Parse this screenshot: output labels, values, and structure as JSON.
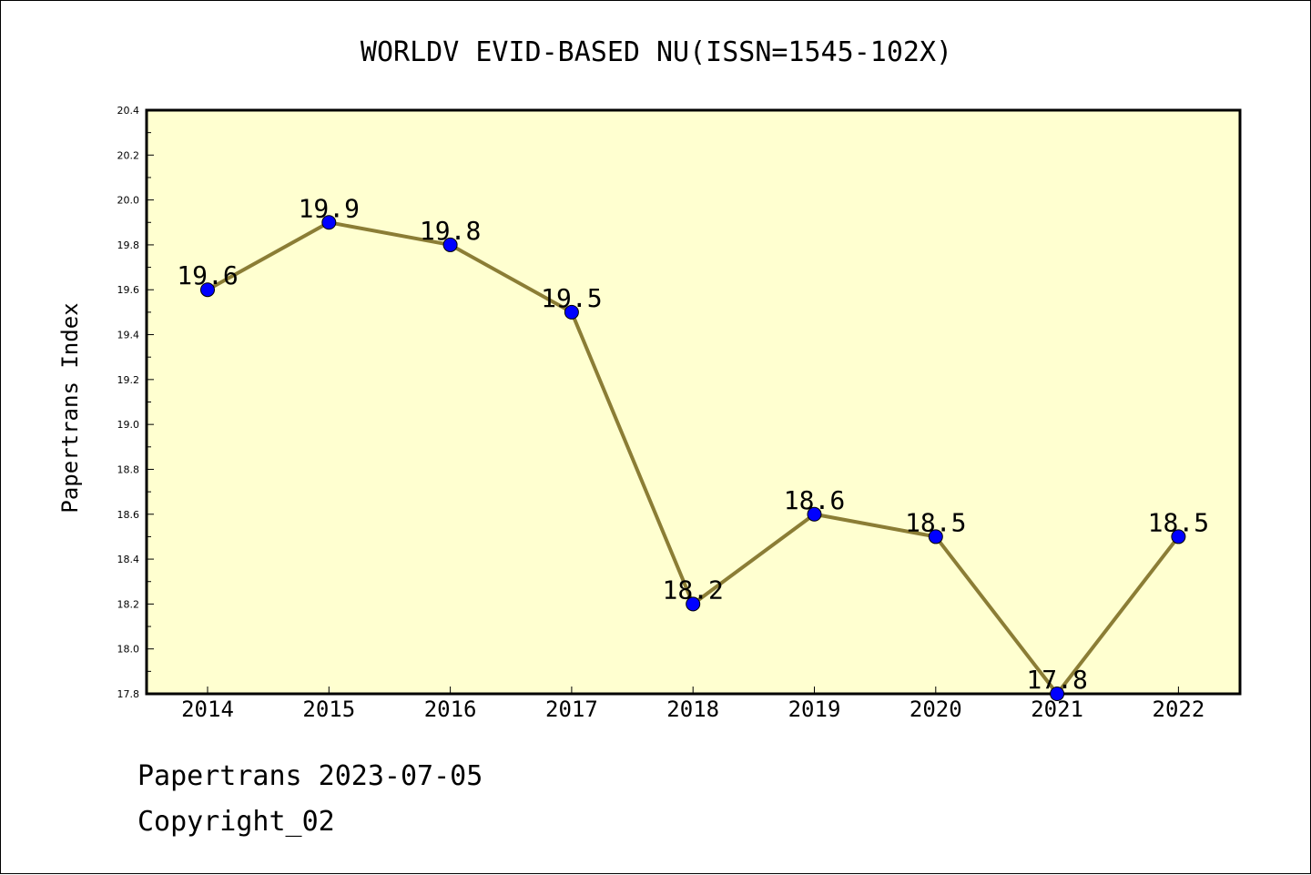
{
  "chart_data": {
    "type": "line",
    "title": "WORLDV EVID-BASED NU(ISSN=1545-102X)",
    "ylabel": "Papertrans Index",
    "xlabel": "",
    "categories": [
      "2014",
      "2015",
      "2016",
      "2017",
      "2018",
      "2019",
      "2020",
      "2021",
      "2022"
    ],
    "series": [
      {
        "values": [
          19.6,
          19.9,
          19.8,
          19.5,
          18.2,
          18.6,
          18.5,
          17.8,
          18.5
        ],
        "labels": [
          "19.6",
          "19.9",
          "19.8",
          "19.5",
          "18.2",
          "18.6",
          "18.5",
          "17.8",
          "18.5"
        ]
      }
    ],
    "ylim": [
      17.8,
      20.4
    ],
    "yticks": [
      "17.8",
      "18.0",
      "18.2",
      "18.4",
      "18.6",
      "18.8",
      "19.0",
      "19.2",
      "19.4",
      "19.6",
      "19.8",
      "20.0",
      "20.2",
      "20.4"
    ],
    "grid": false,
    "legend": "none",
    "colors": {
      "plot_background": "#ffffd0",
      "line": "#8b7d35",
      "marker": "#0000ff"
    }
  },
  "footer": {
    "date_line": "Papertrans 2023-07-05",
    "copyright": "Copyright_02"
  }
}
